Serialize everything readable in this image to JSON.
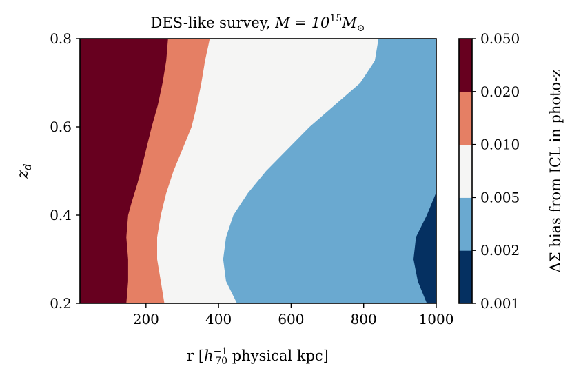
{
  "chart_data": {
    "type": "contour",
    "title_prefix": "DES-like survey, ",
    "title_math": "M = 10",
    "title_exp": "15",
    "title_suffix": "M",
    "title_sub": "⊙",
    "xlabel_pre": "r [",
    "xlabel_h": "h",
    "xlabel_sup": "−1",
    "xlabel_sub": "70",
    "xlabel_post": " physical kpc]",
    "ylabel": "z",
    "ylabel_sub": "d",
    "xlim": [
      18,
      1000
    ],
    "ylim": [
      0.2,
      0.8
    ],
    "xticks": [
      200,
      400,
      600,
      800,
      1000
    ],
    "xtick_labels": [
      "200",
      "400",
      "600",
      "800",
      "1000"
    ],
    "yticks": [
      0.2,
      0.4,
      0.6,
      0.8
    ],
    "ytick_labels": [
      "0.2",
      "0.4",
      "0.6",
      "0.8"
    ],
    "colorbar": {
      "label": "ΔΣ bias from ICL in photo-z",
      "levels": [
        0.001,
        0.002,
        0.005,
        0.01,
        0.02,
        0.05
      ],
      "level_labels": [
        "0.001",
        "0.002",
        "0.005",
        "0.010",
        "0.020",
        "0.050"
      ],
      "colors": [
        "#053061",
        "#6aa9d0",
        "#f5f5f4",
        "#e57f64",
        "#67001f"
      ]
    },
    "boundaries": [
      {
        "name": "0.020 contour",
        "points": [
          [
            145,
            0.2
          ],
          [
            150,
            0.25
          ],
          [
            150,
            0.3
          ],
          [
            145,
            0.35
          ],
          [
            150,
            0.4
          ],
          [
            160,
            0.43
          ],
          [
            175,
            0.47
          ],
          [
            185,
            0.5
          ],
          [
            200,
            0.55
          ],
          [
            215,
            0.6
          ],
          [
            232,
            0.65
          ],
          [
            245,
            0.7
          ],
          [
            255,
            0.75
          ],
          [
            260,
            0.8
          ]
        ]
      },
      {
        "name": "0.010 contour",
        "points": [
          [
            250,
            0.2
          ],
          [
            240,
            0.25
          ],
          [
            230,
            0.3
          ],
          [
            230,
            0.35
          ],
          [
            240,
            0.4
          ],
          [
            255,
            0.45
          ],
          [
            275,
            0.5
          ],
          [
            300,
            0.55
          ],
          [
            325,
            0.6
          ],
          [
            340,
            0.65
          ],
          [
            352,
            0.7
          ],
          [
            362,
            0.75
          ],
          [
            375,
            0.8
          ]
        ]
      },
      {
        "name": "0.005 contour",
        "points": [
          [
            450,
            0.2
          ],
          [
            420,
            0.25
          ],
          [
            412,
            0.3
          ],
          [
            420,
            0.35
          ],
          [
            440,
            0.4
          ],
          [
            480,
            0.45
          ],
          [
            530,
            0.5
          ],
          [
            590,
            0.55
          ],
          [
            650,
            0.6
          ],
          [
            720,
            0.65
          ],
          [
            790,
            0.7
          ],
          [
            830,
            0.75
          ],
          [
            840,
            0.8
          ]
        ]
      },
      {
        "name": "0.002 contour",
        "points": [
          [
            975,
            0.2
          ],
          [
            950,
            0.25
          ],
          [
            938,
            0.3
          ],
          [
            945,
            0.35
          ],
          [
            975,
            0.4
          ],
          [
            1000,
            0.45
          ]
        ]
      }
    ]
  }
}
